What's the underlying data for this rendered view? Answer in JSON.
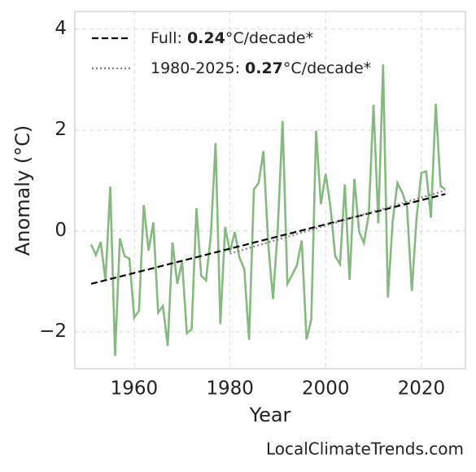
{
  "chart_data": {
    "type": "line",
    "x_label": "Year",
    "y_label": "Anomaly (°C)",
    "footer": "LocalClimateTrends.com",
    "xlim": [
      1947.6,
      2029.2
    ],
    "ylim": [
      -2.73,
      4.35
    ],
    "xticks": [
      1960,
      1980,
      2000,
      2020
    ],
    "yticks": [
      {
        "value": -2,
        "label": "−2"
      },
      0,
      2,
      4
    ],
    "grid": true,
    "legend": "upper left",
    "series": [
      {
        "color": "#86b97f",
        "linestyle": "solid",
        "x": [
          1951,
          1952,
          1953,
          1954,
          1955,
          1956,
          1957,
          1958,
          1959,
          1960,
          1961,
          1962,
          1963,
          1964,
          1965,
          1966,
          1967,
          1968,
          1969,
          1970,
          1971,
          1972,
          1973,
          1974,
          1975,
          1976,
          1977,
          1978,
          1979,
          1980,
          1981,
          1982,
          1983,
          1984,
          1985,
          1986,
          1987,
          1988,
          1989,
          1990,
          1991,
          1992,
          1993,
          1994,
          1995,
          1996,
          1997,
          1998,
          1999,
          2000,
          2001,
          2002,
          2003,
          2004,
          2005,
          2006,
          2007,
          2008,
          2009,
          2010,
          2011,
          2012,
          2013,
          2014,
          2015,
          2016,
          2017,
          2018,
          2019,
          2020,
          2021,
          2022,
          2023,
          2024,
          2025
        ],
        "values": [
          -0.27,
          -0.48,
          -0.22,
          -0.98,
          0.88,
          -2.48,
          -0.15,
          -0.5,
          -0.55,
          -1.72,
          -1.58,
          0.51,
          -0.39,
          0.17,
          -1.62,
          -1.49,
          -2.28,
          -0.23,
          -1.05,
          -0.61,
          -2.03,
          -1.95,
          0.45,
          -0.89,
          -0.98,
          -0.1,
          1.74,
          -1.85,
          0.08,
          -0.42,
          -0.02,
          -0.53,
          -0.76,
          -2.16,
          0.82,
          0.95,
          1.58,
          -0.26,
          -1.35,
          0.05,
          2.18,
          -1.05,
          -0.87,
          -0.68,
          -0.19,
          -2.15,
          -1.76,
          1.98,
          0.53,
          1.13,
          0.48,
          -0.5,
          -0.66,
          0.92,
          -0.97,
          1.03,
          -0.02,
          -0.24,
          0.32,
          2.5,
          0.15,
          3.3,
          -1.32,
          0.19,
          0.95,
          0.76,
          0.48,
          -1.19,
          0.26,
          1.15,
          1.18,
          0.26,
          2.52,
          0.89,
          0.82
        ]
      },
      {
        "name": "Full: 0.24°C/decade*",
        "color": "#000000",
        "linestyle": "dashed",
        "x": [
          1951,
          2025
        ],
        "values": [
          -1.05,
          0.73
        ]
      },
      {
        "name": "1980-2025: 0.27°C/decade*",
        "color": "#808080",
        "linestyle": "dotted",
        "x": [
          1980,
          2025
        ],
        "values": [
          -0.45,
          0.8
        ]
      }
    ]
  }
}
